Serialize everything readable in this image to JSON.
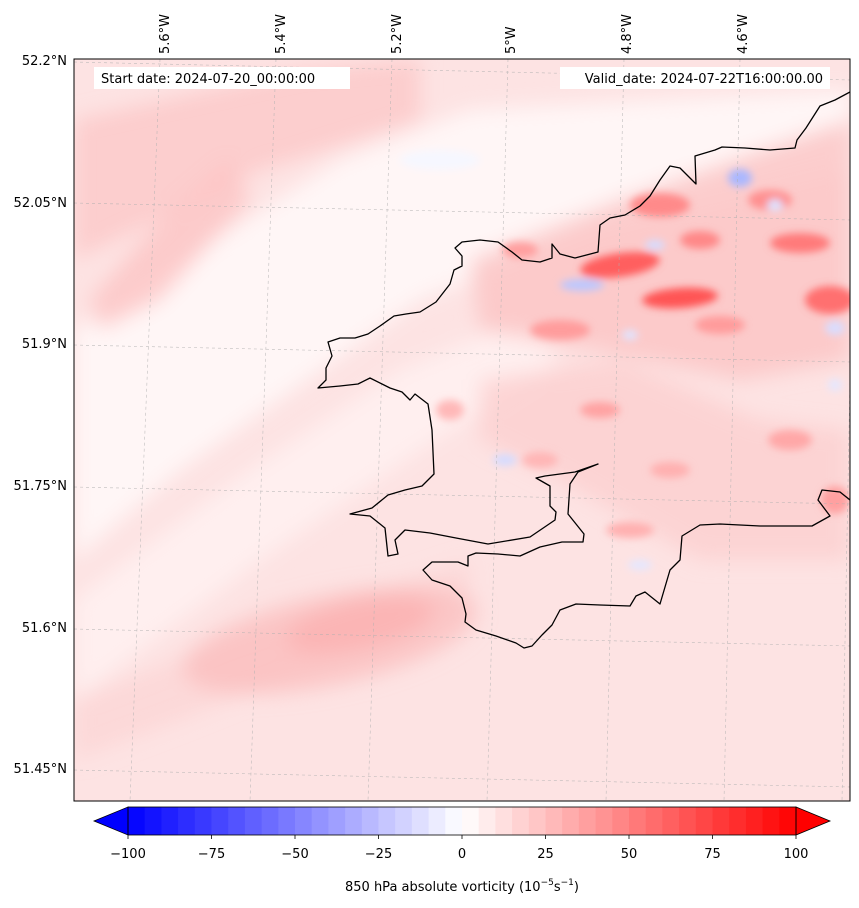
{
  "map": {
    "start_label": "Start date: 2024-07-20_00:00:00",
    "valid_label": "Valid_date: 2024-07-22T16:00:00.00",
    "lat_ticks": [
      "52.2°N",
      "52.05°N",
      "51.9°N",
      "51.75°N",
      "51.6°N",
      "51.45°N"
    ],
    "lon_ticks": [
      "5.6°W",
      "5.4°W",
      "5.2°W",
      "5°W",
      "4.8°W",
      "4.6°W"
    ],
    "colorbar": {
      "ticks": [
        "−100",
        "−75",
        "−50",
        "−25",
        "0",
        "25",
        "50",
        "75",
        "100"
      ],
      "label_main": "850 hPa absolute vorticity (10",
      "label_exp1": "−5",
      "label_mid": "s",
      "label_exp2": "−1",
      "label_end": ")",
      "min": -100,
      "max": 100,
      "colors": {
        "low": "#0000ff",
        "mid": "#ffffff",
        "high": "#ff0000"
      }
    },
    "colors": {
      "coastline": "#000000",
      "field_base": "#fde3e3",
      "gridline": "#b0b0b0"
    }
  }
}
